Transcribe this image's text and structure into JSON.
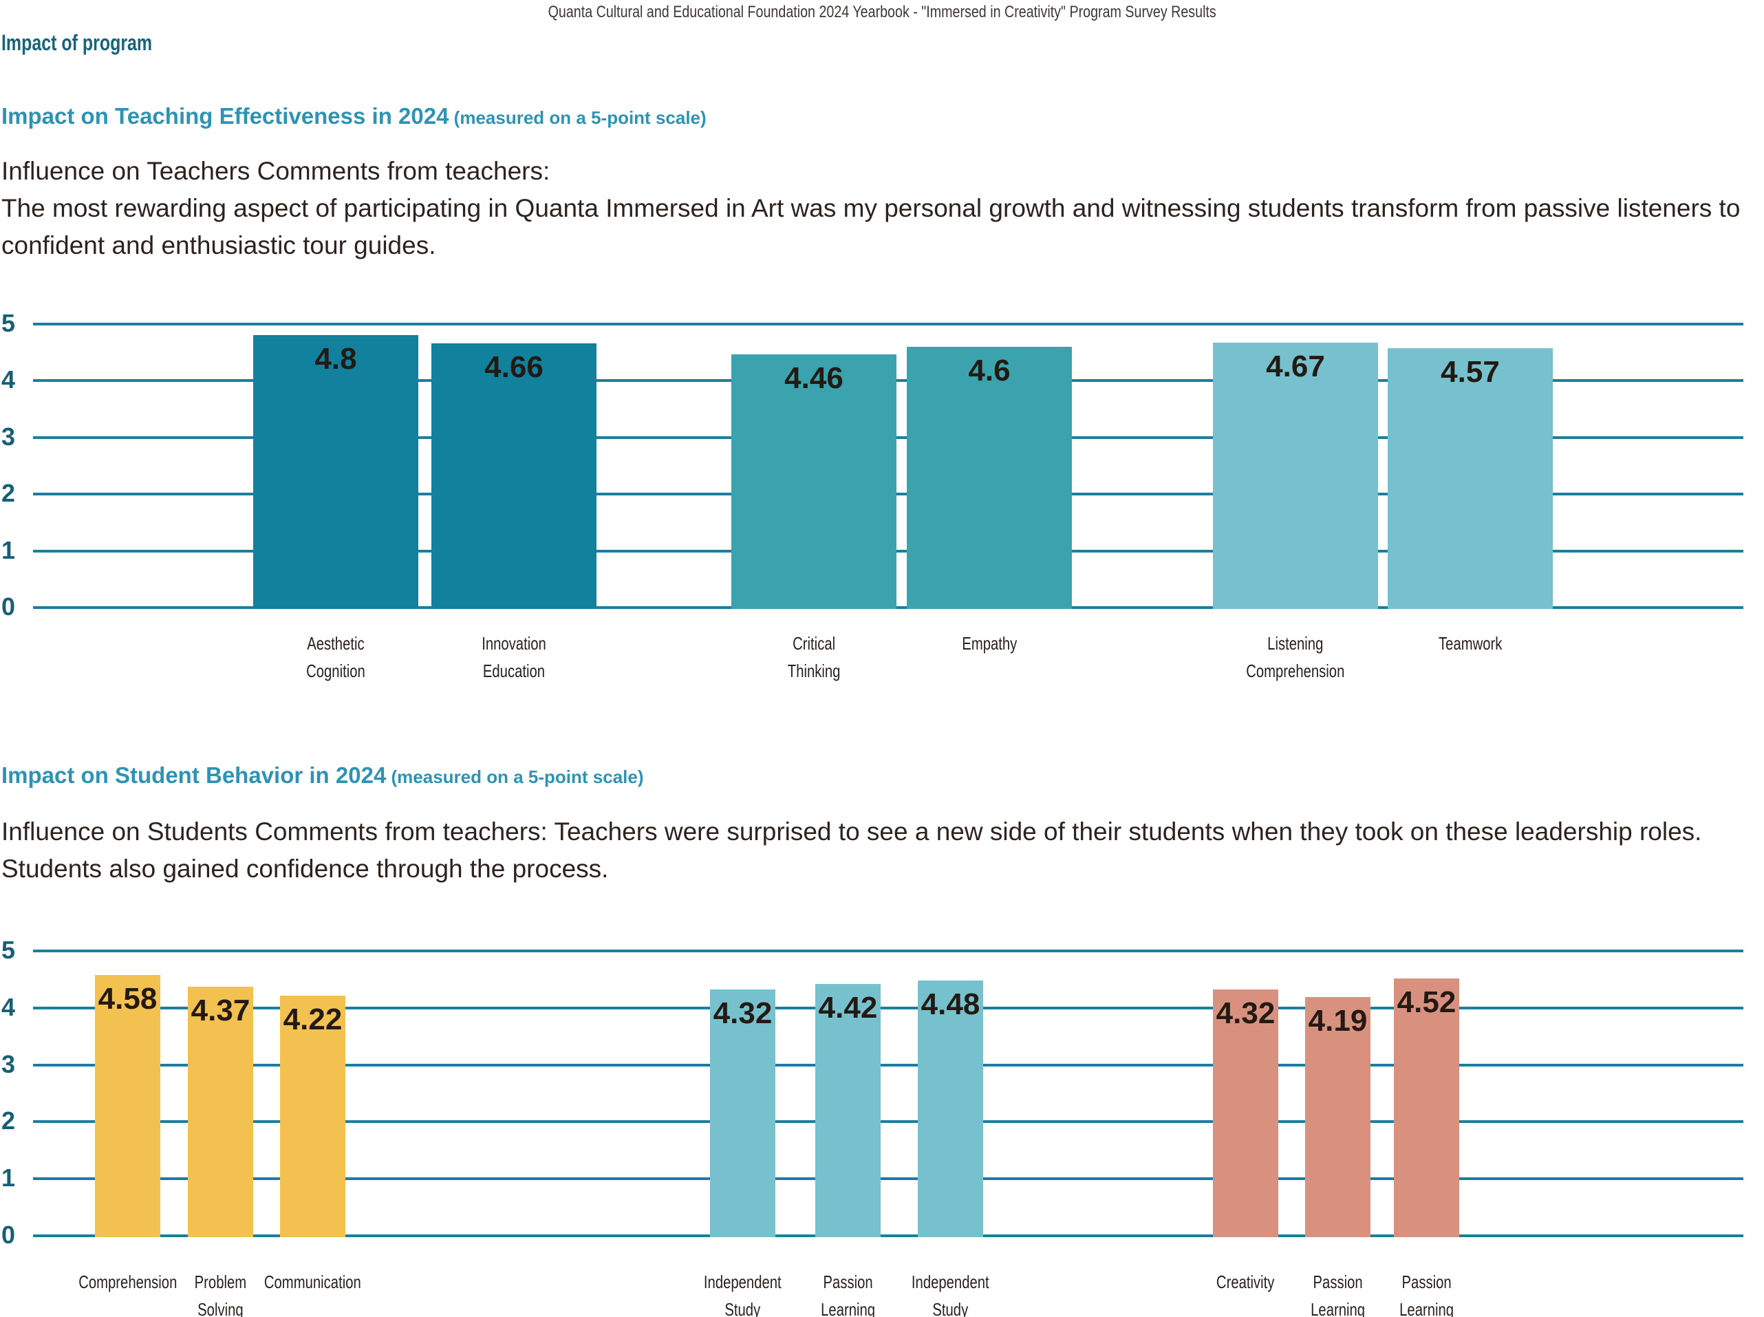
{
  "page_title": "Quanta Cultural and Educational Foundation 2024 Yearbook - \"Immersed in Creativity\" Program Survey Results",
  "section1": {
    "heading": "Impact of program",
    "subheading": "Impact on Teaching Effectiveness in 2024",
    "subheading_note": " (measured on a 5-point scale)",
    "paragraph_lines": [
      "Influence on Teachers Comments from teachers:",
      "The most rewarding aspect of participating in Quanta Immersed in Art was my personal growth and witnessing students transform from passive listeners to",
      "confident and enthusiastic tour guides."
    ]
  },
  "section2": {
    "subheading": "Impact on Student Behavior in 2024",
    "subheading_note": " (measured on a 5-point scale)",
    "paragraph_lines": [
      "Influence on Students Comments from teachers: Teachers were surprised to see a new side of their students when they took on these leadership roles.",
      "Students also gained confidence through the process."
    ]
  },
  "chart_data": [
    {
      "type": "bar",
      "title": "Impact on Teaching Effectiveness in 2024 (measured on a 5-point scale)",
      "categories": [
        "Aesthetic Cognition",
        "Innovation Education",
        "Critical Thinking",
        "Empathy",
        "Listening Comprehension",
        "Teamwork"
      ],
      "values": [
        4.8,
        4.66,
        4.46,
        4.6,
        4.67,
        4.57
      ],
      "bar_colors": [
        "#11819e",
        "#11819e",
        "#3ba3ad",
        "#3ba3ad",
        "#76c1cd",
        "#76c1cd"
      ],
      "xlabel": "",
      "ylabel": "",
      "ylim": [
        0,
        5
      ],
      "yticks": [
        0,
        1,
        2,
        3,
        4,
        5
      ],
      "grid": true,
      "legend": "none",
      "value_labels": "inside-top"
    },
    {
      "type": "bar",
      "title": "Impact on Student Behavior in 2024 (measured on a 5-point scale)",
      "categories": [
        "Comprehension",
        "Problem Solving",
        "Communication",
        "Independent Study",
        "Passion Learning",
        "Independent Study",
        "Creativity",
        "Passion Learning",
        "Passion Learning"
      ],
      "values": [
        4.58,
        4.37,
        4.22,
        4.32,
        4.42,
        4.48,
        4.32,
        4.19,
        4.52
      ],
      "bar_colors": [
        "#f2c150",
        "#f2c150",
        "#f2c150",
        "#76c1cd",
        "#76c1cd",
        "#76c1cd",
        "#d9917f",
        "#d9917f",
        "#d9917f"
      ],
      "xlabel": "",
      "ylabel": "",
      "ylim": [
        0,
        5
      ],
      "yticks": [
        0,
        1,
        2,
        3,
        4,
        5
      ],
      "grid": true,
      "legend": "none",
      "value_labels": "inside-top"
    }
  ],
  "colors": {
    "gridline": "#1b7e9f",
    "axis_tick_label": "#175f76",
    "heading_dark_teal": "#19637a",
    "heading_light_teal": "#2e93b4",
    "body_text": "#2d231e",
    "value_label": "#231a13",
    "title_text": "#3e3835",
    "group1_teal_dark": "#11819e",
    "group1_teal_mid": "#3ba3ad",
    "teal_light": "#76c1cd",
    "yellow": "#f2c150",
    "salmon": "#d9917f"
  }
}
